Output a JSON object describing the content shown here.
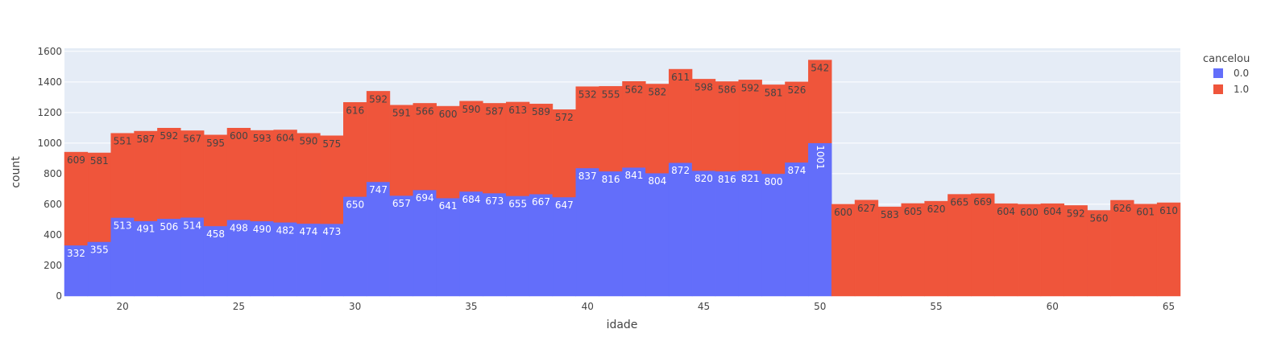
{
  "chart_data": {
    "type": "bar",
    "barmode": "stack",
    "x": [
      18,
      19,
      20,
      21,
      22,
      23,
      24,
      25,
      26,
      27,
      28,
      29,
      30,
      31,
      32,
      33,
      34,
      35,
      36,
      37,
      38,
      39,
      40,
      41,
      42,
      43,
      44,
      45,
      46,
      47,
      48,
      49,
      50,
      51,
      52,
      53,
      54,
      55,
      56,
      57,
      58,
      59,
      60,
      61,
      62,
      63,
      64,
      65
    ],
    "series": [
      {
        "name": "0.0",
        "color": "#636efa",
        "values": [
          332,
          355,
          513,
          491,
          506,
          514,
          458,
          498,
          490,
          482,
          474,
          473,
          650,
          747,
          657,
          694,
          641,
          684,
          673,
          655,
          667,
          647,
          837,
          816,
          841,
          804,
          872,
          820,
          816,
          821,
          800,
          874,
          1001,
          null,
          null,
          null,
          null,
          null,
          null,
          null,
          null,
          null,
          null,
          null,
          null,
          null,
          null,
          null
        ]
      },
      {
        "name": "1.0",
        "color": "#ef553b",
        "values": [
          609,
          581,
          551,
          587,
          592,
          567,
          595,
          600,
          593,
          604,
          590,
          575,
          616,
          592,
          591,
          566,
          600,
          590,
          587,
          613,
          589,
          572,
          532,
          555,
          562,
          582,
          611,
          598,
          586,
          592,
          581,
          526,
          542,
          600,
          627,
          583,
          605,
          620,
          665,
          669,
          604,
          600,
          604,
          592,
          560,
          626,
          601,
          610
        ]
      }
    ],
    "xlabel": "idade",
    "ylabel": "count",
    "xticks": [
      20,
      25,
      30,
      35,
      40,
      45,
      50,
      55,
      60,
      65
    ],
    "yticks": [
      0,
      200,
      400,
      600,
      800,
      1000,
      1200,
      1400,
      1600
    ],
    "xlim": [
      17.5,
      65.5
    ],
    "ylim": [
      0,
      1620
    ],
    "grid": true,
    "legend_title": "cancelou",
    "legend_position": "top-right"
  }
}
